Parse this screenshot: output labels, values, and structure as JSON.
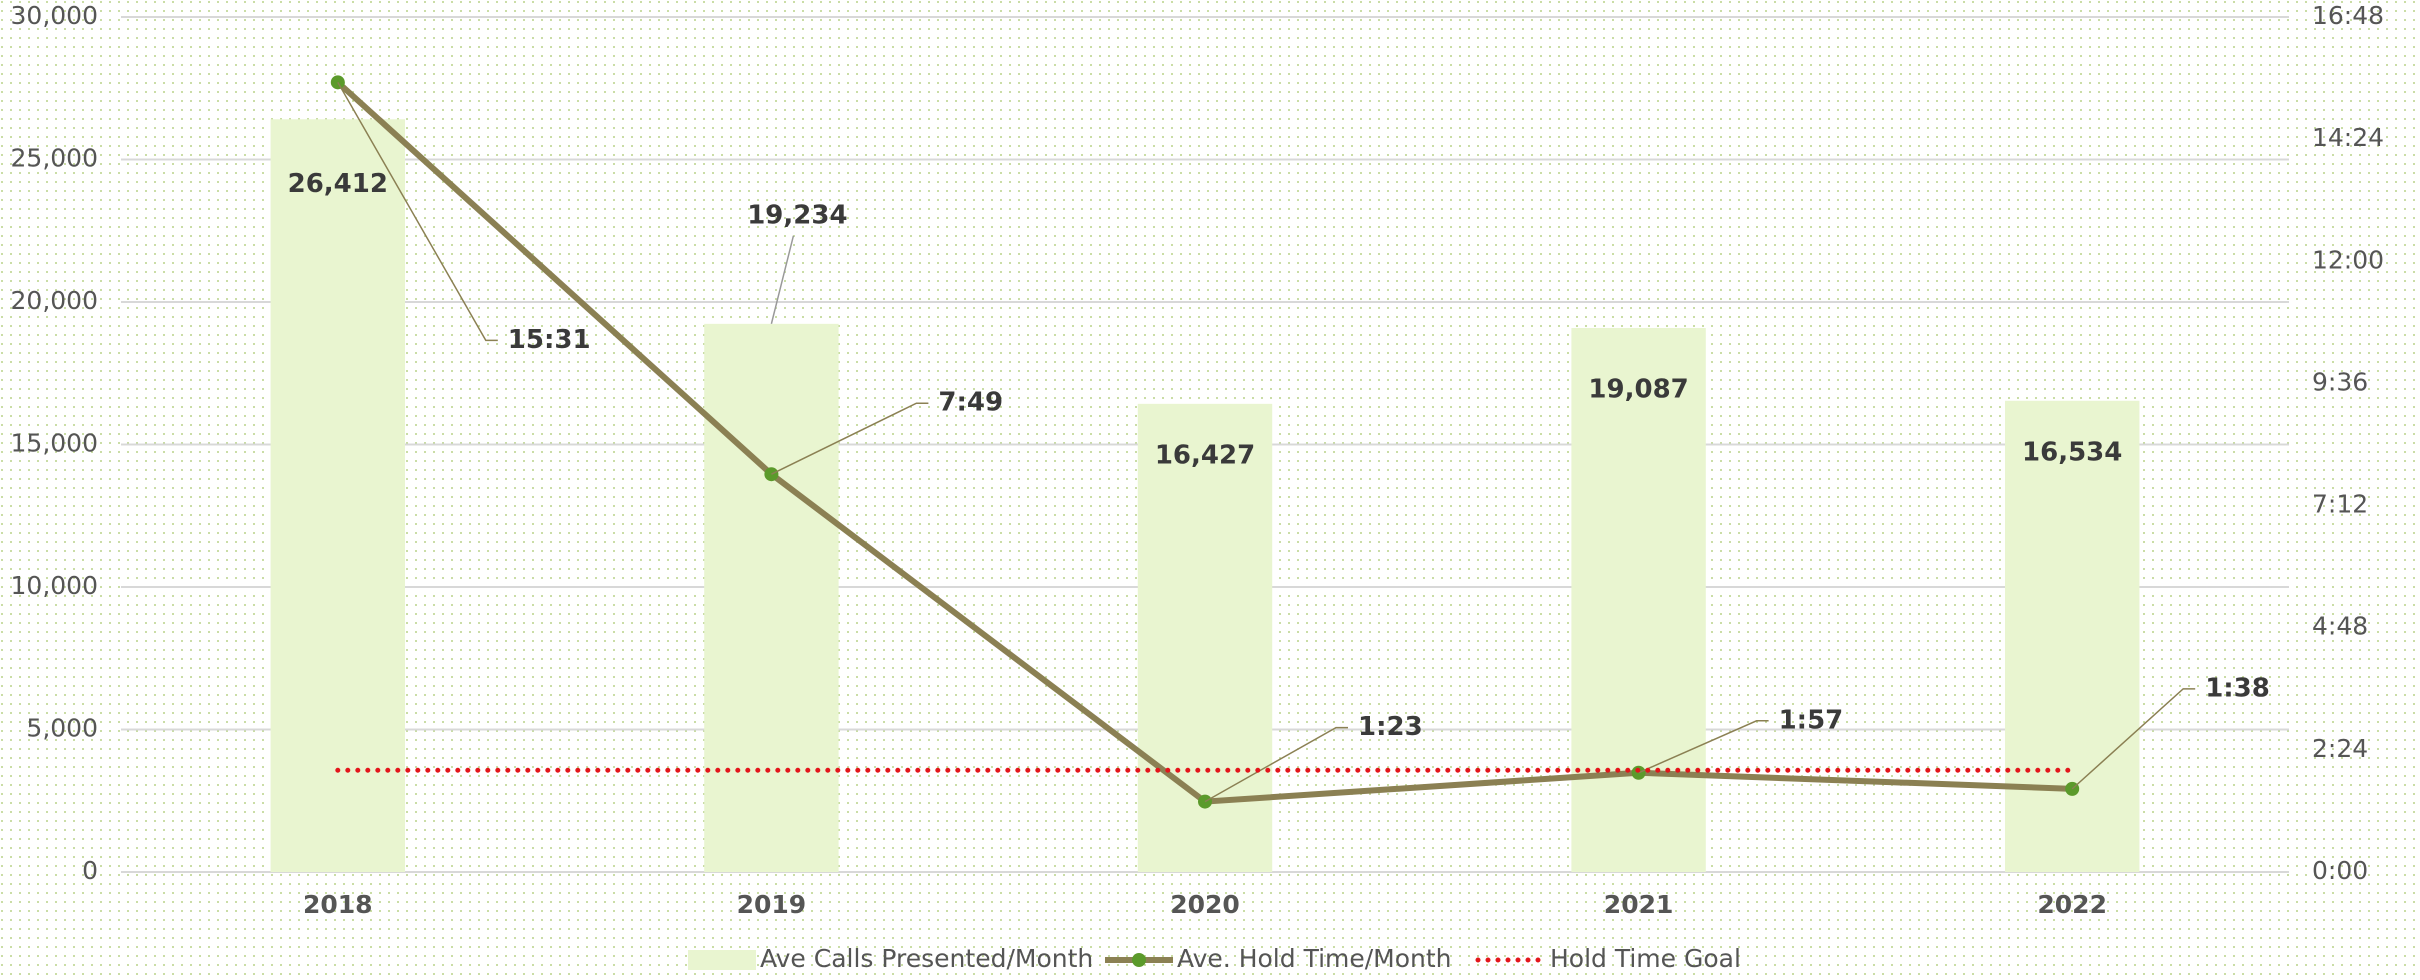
{
  "chart_data": {
    "type": "bar",
    "categories": [
      "2018",
      "2019",
      "2020",
      "2021",
      "2022"
    ],
    "series": [
      {
        "name": "Ave Calls Presented/Month",
        "type": "bar",
        "color": "#e9f5d0",
        "values": [
          26412,
          19234,
          16427,
          19087,
          16534
        ],
        "value_labels": [
          "26,412",
          "19,234",
          "16,427",
          "19,087",
          "16,534"
        ]
      },
      {
        "name": "Ave. Hold Time/Month",
        "type": "line",
        "axis": "y2",
        "color": "#8b8053",
        "marker_color": "#5b9a2b",
        "values": [
          931,
          469,
          83,
          117,
          98
        ],
        "value_labels": [
          "15:31",
          "7:49",
          "1:23",
          "1:57",
          "1:38"
        ]
      },
      {
        "name": "Hold Time Goal",
        "type": "line",
        "axis": "y2",
        "color": "#e3161b",
        "dash": "dotted",
        "values": [
          120,
          120,
          120,
          120,
          120
        ]
      }
    ],
    "ylim": [
      0,
      30000
    ],
    "yticks": [
      0,
      {
        "value": 5000,
        "label": "5,000"
      },
      {
        "value": 10000,
        "label": "10,000"
      },
      {
        "value": 15000,
        "label": "15,000"
      },
      {
        "value": 20000,
        "label": "20,000"
      },
      {
        "value": 25000,
        "label": "25,000"
      },
      {
        "value": 30000,
        "label": "30,000"
      }
    ],
    "y2lim": [
      0,
      1008
    ],
    "y2ticks": [
      {
        "value": 0,
        "label": "0:00"
      },
      {
        "value": 144,
        "label": "2:24"
      },
      {
        "value": 288,
        "label": "4:48"
      },
      {
        "value": 432,
        "label": "7:12"
      },
      {
        "value": 576,
        "label": "9:36"
      },
      {
        "value": 720,
        "label": "12:00"
      },
      {
        "value": 864,
        "label": "14:24"
      },
      {
        "value": 1008,
        "label": "16:48"
      }
    ],
    "grid": true
  }
}
